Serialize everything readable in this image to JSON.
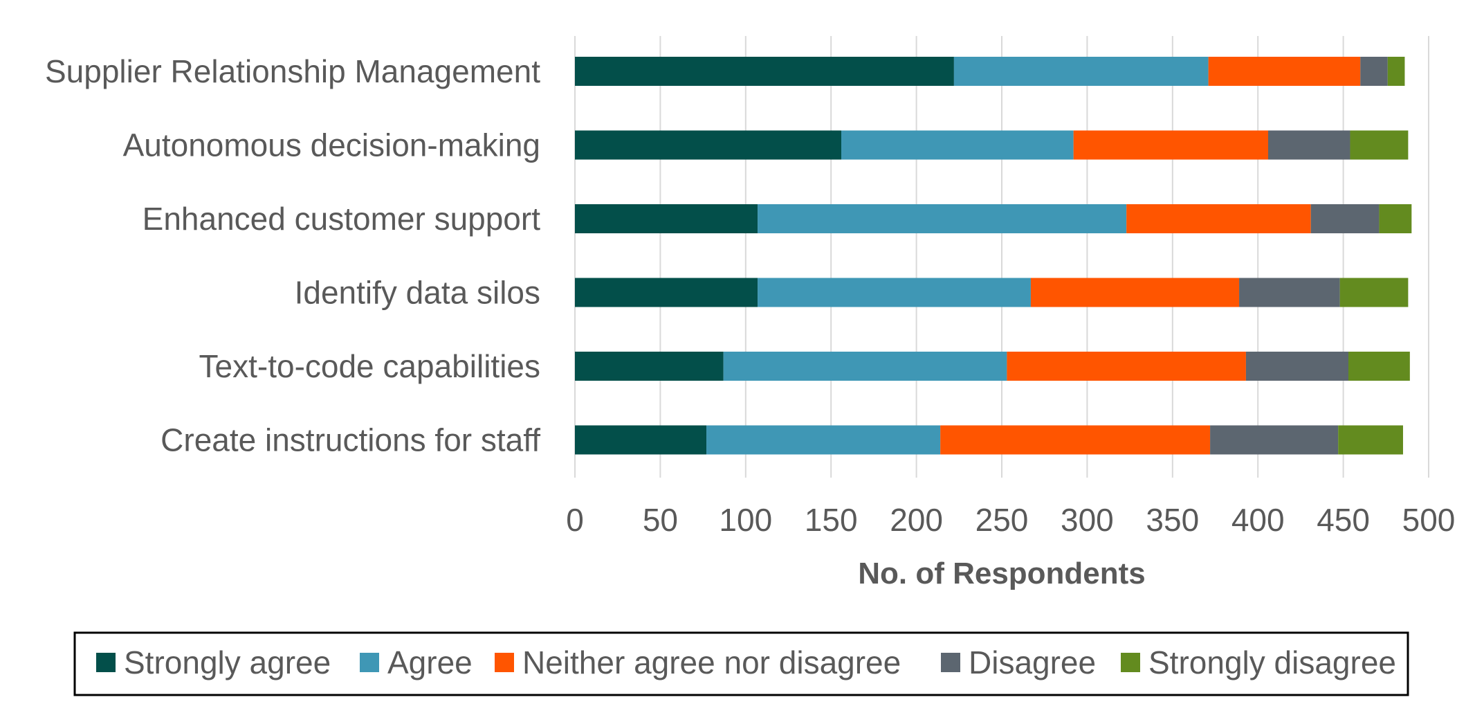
{
  "chart_data": {
    "type": "bar",
    "orientation": "horizontal",
    "stacked": true,
    "title": "",
    "xlabel": "No. of Respondents",
    "ylabel": "",
    "xlim": [
      0,
      500
    ],
    "xticks": [
      0,
      50,
      100,
      150,
      200,
      250,
      300,
      350,
      400,
      450,
      500
    ],
    "grid": "vertical",
    "legend_position": "bottom",
    "categories": [
      "Supplier Relationship Management",
      "Autonomous decision-making",
      "Enhanced customer support",
      "Identify data silos",
      "Text-to-code capabilities",
      "Create instructions for staff"
    ],
    "series": [
      {
        "name": "Strongly agree",
        "color": "#034f4a",
        "values": [
          222,
          156,
          107,
          107,
          87,
          77
        ]
      },
      {
        "name": "Agree",
        "color": "#3f97b5",
        "values": [
          149,
          136,
          216,
          160,
          166,
          137
        ]
      },
      {
        "name": "Neither agree nor disagree",
        "color": "#ff5500",
        "values": [
          89,
          114,
          108,
          122,
          140,
          158
        ]
      },
      {
        "name": "Disagree",
        "color": "#5c6670",
        "values": [
          16,
          48,
          40,
          59,
          60,
          75
        ]
      },
      {
        "name": "Strongly disagree",
        "color": "#638b1f",
        "values": [
          10,
          34,
          19,
          40,
          36,
          38
        ]
      }
    ]
  }
}
